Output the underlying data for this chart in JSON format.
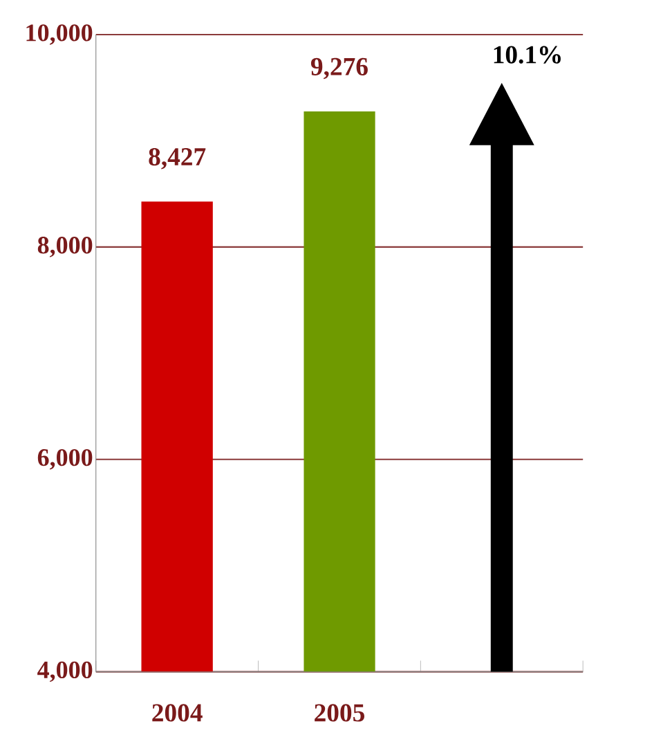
{
  "chart_data": {
    "type": "bar",
    "categories": [
      "2004",
      "2005",
      null
    ],
    "values": [
      8427,
      9276,
      null
    ],
    "colors": [
      "#d00000",
      "#6f9a00",
      null
    ],
    "value_labels": [
      "8,427",
      "9,276",
      null
    ],
    "ylim": [
      4000,
      10000
    ],
    "yticks": [
      {
        "value": 4000,
        "label": "4,000"
      },
      {
        "value": 6000,
        "label": "6,000"
      },
      {
        "value": 8000,
        "label": "8,000"
      },
      {
        "value": 10000,
        "label": "10,000"
      }
    ],
    "grid": "y",
    "annotations": [
      "10.1%"
    ]
  }
}
